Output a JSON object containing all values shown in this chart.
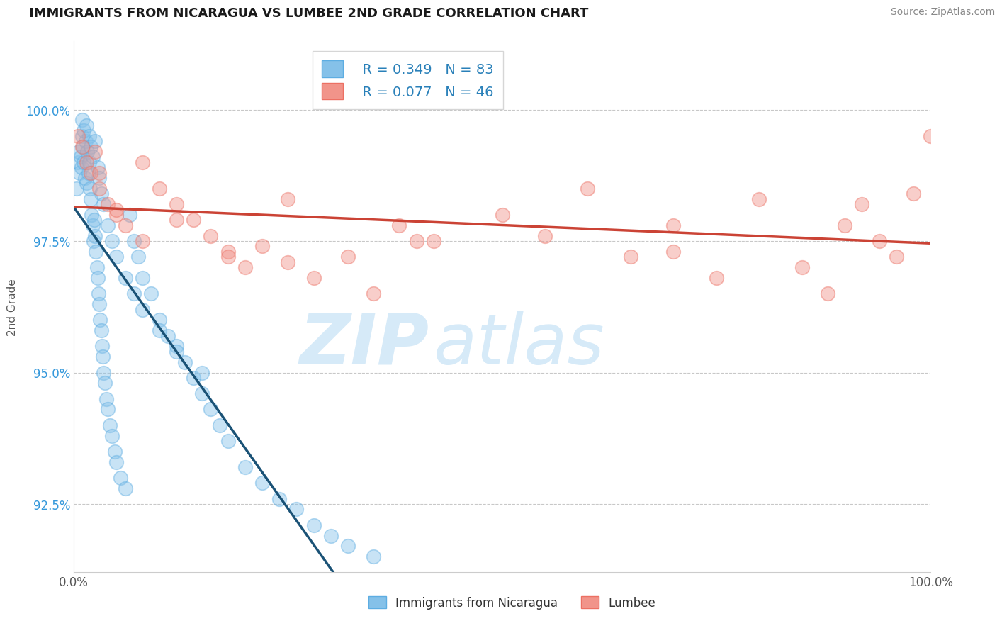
{
  "title": "IMMIGRANTS FROM NICARAGUA VS LUMBEE 2ND GRADE CORRELATION CHART",
  "source": "Source: ZipAtlas.com",
  "ylabel": "2nd Grade",
  "xlim": [
    0.0,
    100.0
  ],
  "ylim": [
    91.2,
    101.3
  ],
  "yticks": [
    92.5,
    95.0,
    97.5,
    100.0
  ],
  "legend_r1": "R = 0.349",
  "legend_n1": "N = 83",
  "legend_r2": "R = 0.077",
  "legend_n2": "N = 46",
  "legend_label1": "Immigrants from Nicaragua",
  "legend_label2": "Lumbee",
  "blue_color": "#85c1e9",
  "pink_color": "#f1948a",
  "blue_edge_color": "#5dade2",
  "pink_edge_color": "#ec7063",
  "blue_line_color": "#1a5276",
  "pink_line_color": "#cb4335",
  "title_color": "#222222",
  "watermark_zip": "ZIP",
  "watermark_atlas": "atlas",
  "watermark_color": "#d6eaf8",
  "background_color": "#ffffff",
  "blue_scatter_x": [
    0.3,
    0.5,
    0.6,
    0.7,
    0.8,
    0.9,
    1.0,
    1.1,
    1.2,
    1.3,
    1.4,
    1.5,
    1.6,
    1.7,
    1.8,
    1.9,
    2.0,
    2.1,
    2.2,
    2.3,
    2.4,
    2.5,
    2.6,
    2.7,
    2.8,
    2.9,
    3.0,
    3.1,
    3.2,
    3.3,
    3.4,
    3.5,
    3.6,
    3.8,
    4.0,
    4.2,
    4.5,
    4.8,
    5.0,
    5.5,
    6.0,
    6.5,
    7.0,
    7.5,
    8.0,
    9.0,
    10.0,
    11.0,
    12.0,
    13.0,
    14.0,
    15.0,
    16.0,
    17.0,
    18.0,
    20.0,
    22.0,
    24.0,
    26.0,
    28.0,
    30.0,
    32.0,
    35.0,
    1.0,
    1.2,
    1.5,
    1.8,
    2.0,
    2.2,
    2.5,
    2.8,
    3.0,
    3.2,
    3.5,
    4.0,
    4.5,
    5.0,
    6.0,
    7.0,
    8.0,
    10.0,
    12.0,
    15.0
  ],
  "blue_scatter_y": [
    98.5,
    99.0,
    99.2,
    98.8,
    99.1,
    98.9,
    99.5,
    99.3,
    99.0,
    98.7,
    99.4,
    98.6,
    99.2,
    98.8,
    99.0,
    98.5,
    98.3,
    98.0,
    97.8,
    97.5,
    97.9,
    97.6,
    97.3,
    97.0,
    96.8,
    96.5,
    96.3,
    96.0,
    95.8,
    95.5,
    95.3,
    95.0,
    94.8,
    94.5,
    94.3,
    94.0,
    93.8,
    93.5,
    93.3,
    93.0,
    92.8,
    98.0,
    97.5,
    97.2,
    96.8,
    96.5,
    96.0,
    95.7,
    95.5,
    95.2,
    94.9,
    94.6,
    94.3,
    94.0,
    93.7,
    93.2,
    92.9,
    92.6,
    92.4,
    92.1,
    91.9,
    91.7,
    91.5,
    99.8,
    99.6,
    99.7,
    99.5,
    99.3,
    99.1,
    99.4,
    98.9,
    98.7,
    98.4,
    98.2,
    97.8,
    97.5,
    97.2,
    96.8,
    96.5,
    96.2,
    95.8,
    95.4,
    95.0
  ],
  "pink_scatter_x": [
    0.5,
    1.0,
    1.5,
    2.0,
    2.5,
    3.0,
    4.0,
    5.0,
    6.0,
    8.0,
    10.0,
    12.0,
    14.0,
    16.0,
    18.0,
    20.0,
    22.0,
    25.0,
    28.0,
    32.0,
    35.0,
    38.0,
    42.0,
    50.0,
    55.0,
    60.0,
    65.0,
    70.0,
    75.0,
    80.0,
    85.0,
    88.0,
    90.0,
    92.0,
    94.0,
    96.0,
    98.0,
    100.0,
    3.0,
    5.0,
    8.0,
    12.0,
    18.0,
    25.0,
    40.0,
    70.0
  ],
  "pink_scatter_y": [
    99.5,
    99.3,
    99.0,
    98.8,
    99.2,
    98.5,
    98.2,
    98.0,
    97.8,
    99.0,
    98.5,
    98.2,
    97.9,
    97.6,
    97.3,
    97.0,
    97.4,
    97.1,
    96.8,
    97.2,
    96.5,
    97.8,
    97.5,
    98.0,
    97.6,
    98.5,
    97.2,
    97.8,
    96.8,
    98.3,
    97.0,
    96.5,
    97.8,
    98.2,
    97.5,
    97.2,
    98.4,
    99.5,
    98.8,
    98.1,
    97.5,
    97.9,
    97.2,
    98.3,
    97.5,
    97.3
  ]
}
